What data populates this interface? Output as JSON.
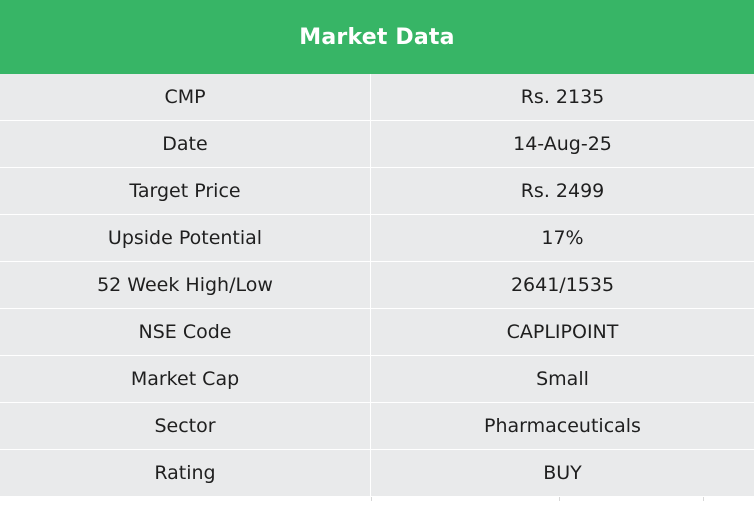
{
  "table": {
    "title": "Market Data",
    "rows": [
      {
        "label": "CMP",
        "value": "Rs. 2135"
      },
      {
        "label": "Date",
        "value": "14-Aug-25"
      },
      {
        "label": "Target Price",
        "value": "Rs. 2499"
      },
      {
        "label": "Upside Potential",
        "value": "17%"
      },
      {
        "label": "52 Week High/Low",
        "value": "2641/1535"
      },
      {
        "label": "NSE Code",
        "value": "CAPLIPOINT"
      },
      {
        "label": "Market Cap",
        "value": "Small"
      },
      {
        "label": "Sector",
        "value": "Pharmaceuticals"
      },
      {
        "label": "Rating",
        "value": "BUY"
      }
    ]
  },
  "colors": {
    "header_bg": "#37b566",
    "row_bg": "#e9eaeb",
    "text": "#1f1f1f"
  }
}
